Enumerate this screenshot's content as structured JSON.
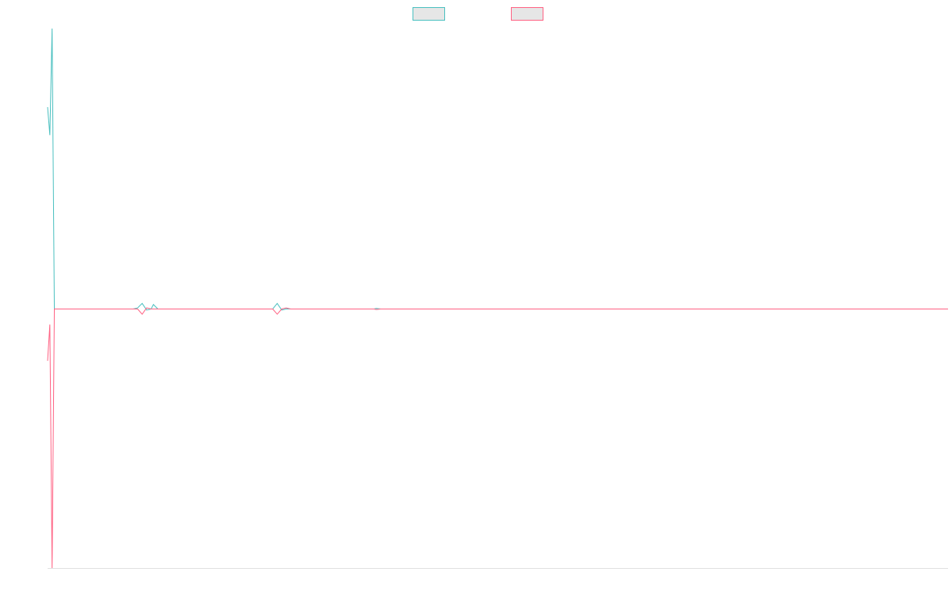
{
  "chart_data": {
    "type": "line",
    "title": "",
    "xlabel": "",
    "ylabel": "",
    "grid": false,
    "legend": {
      "placement": "top-center",
      "entries": [
        {
          "series_index": 0,
          "label": ""
        },
        {
          "series_index": 1,
          "label": ""
        }
      ]
    },
    "xlim": [
      0,
      400
    ],
    "ylim": [
      -1,
      1
    ],
    "series": [
      {
        "color": "#4bc0c0",
        "points": [
          [
            0,
            0.72
          ],
          [
            1,
            0.62
          ],
          [
            2,
            1.0
          ],
          [
            3,
            0.0
          ],
          [
            38,
            0.0
          ],
          [
            40,
            0.004
          ],
          [
            42,
            0.02
          ],
          [
            44,
            -0.004
          ],
          [
            46,
            0.0
          ],
          [
            47,
            0.016
          ],
          [
            49,
            0.0
          ],
          [
            100,
            0.0
          ],
          [
            102,
            0.02
          ],
          [
            104,
            -0.004
          ],
          [
            106,
            0.0
          ],
          [
            145,
            0.0
          ],
          [
            146,
            0.002
          ],
          [
            148,
            0.0
          ],
          [
            400,
            0.0
          ]
        ]
      },
      {
        "color": "#ff6384",
        "points": [
          [
            0,
            -0.2
          ],
          [
            1,
            -0.06
          ],
          [
            2,
            -1.0
          ],
          [
            3,
            0.0
          ],
          [
            40,
            0.0
          ],
          [
            42,
            -0.02
          ],
          [
            44,
            0.004
          ],
          [
            46,
            0.0
          ],
          [
            100,
            0.0
          ],
          [
            102,
            -0.02
          ],
          [
            104,
            0.0
          ],
          [
            106,
            0.004
          ],
          [
            108,
            0.0
          ],
          [
            145,
            0.0
          ],
          [
            146,
            -0.002
          ],
          [
            148,
            0.0
          ],
          [
            400,
            0.0
          ]
        ]
      }
    ]
  }
}
